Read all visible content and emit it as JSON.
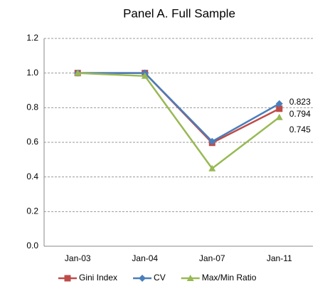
{
  "chart_data": {
    "type": "line",
    "title": "Panel A. Full Sample",
    "categories": [
      "Jan-03",
      "Jan-04",
      "Jan-07",
      "Jan-11"
    ],
    "series": [
      {
        "name": "Gini Index",
        "color": "#be4b48",
        "marker": "square",
        "values": [
          1.0,
          1.0,
          0.597,
          0.794
        ]
      },
      {
        "name": "CV",
        "color": "#4a7ebb",
        "marker": "diamond",
        "values": [
          1.0,
          1.0,
          0.605,
          0.823
        ]
      },
      {
        "name": "Max/Min Ratio",
        "color": "#98b954",
        "marker": "triangle",
        "values": [
          1.0,
          0.983,
          0.449,
          0.745
        ]
      }
    ],
    "ylim": [
      0,
      1.2
    ],
    "yticks": [
      {
        "value": 0,
        "label": "0.0"
      },
      0.2,
      0.4,
      0.6,
      0.8,
      {
        "value": 1,
        "label": "1.0"
      },
      1.2
    ],
    "grid": true,
    "data_labels": "last",
    "legend": "bottom"
  }
}
